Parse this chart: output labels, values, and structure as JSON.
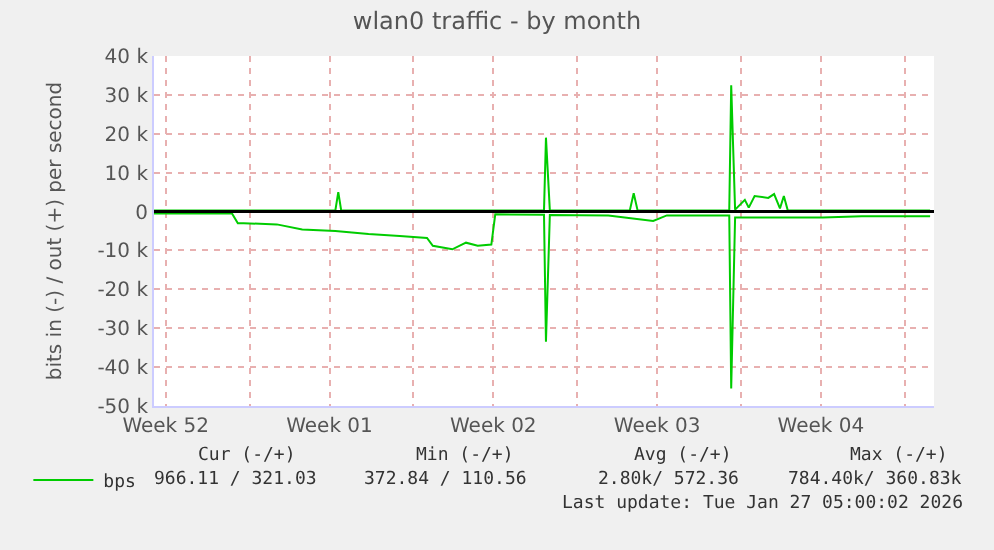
{
  "chart_data": {
    "type": "line",
    "title": "wlan0 traffic - by month",
    "ylabel": "bits in (-) / out (+) per second",
    "xlim": [
      "2025-12-24T22:00",
      "2026-01-27T06:00"
    ],
    "xticks": [
      {
        "value": "2025-12-25T10:00",
        "label": "Week 52"
      },
      {
        "value": "2025-12-29",
        "label": null
      },
      {
        "value": "2026-01-01T10:00",
        "label": "Week 01"
      },
      {
        "value": "2026-01-05",
        "label": null
      },
      {
        "value": "2026-01-08T10:00",
        "label": "Week 02"
      },
      {
        "value": "2026-01-12",
        "label": null
      },
      {
        "value": "2026-01-15T10:00",
        "label": "Week 03"
      },
      {
        "value": "2026-01-19",
        "label": null
      },
      {
        "value": "2026-01-22T10:00",
        "label": "Week 04"
      },
      {
        "value": "2026-01-26",
        "label": null
      }
    ],
    "ylim": [
      -50000,
      40000
    ],
    "yticks": [
      {
        "value": -50000,
        "label": "-50 k"
      },
      {
        "value": -40000,
        "label": "-40 k"
      },
      {
        "value": -30000,
        "label": "-30 k"
      },
      {
        "value": -20000,
        "label": "-20 k"
      },
      {
        "value": -10000,
        "label": "-10 k"
      },
      0,
      {
        "value": 10000,
        "label": "10 k"
      },
      {
        "value": 20000,
        "label": "20 k"
      },
      {
        "value": 30000,
        "label": "30 k"
      },
      {
        "value": 40000,
        "label": "40 k"
      }
    ],
    "series": [
      {
        "name": "bps",
        "color": "#00cc00",
        "x": [
          "2025-12-24T22:00",
          "2026-01-01T16:00",
          "2026-01-01T19:00",
          "2026-01-01T22:00",
          "2026-01-10T14:00",
          "2026-01-10T16:00",
          "2026-01-10T20:00",
          "2026-01-14T06:00",
          "2026-01-14T10:00",
          "2026-01-14T14:00",
          "2026-01-18T12:00",
          "2026-01-18T14:00",
          "2026-01-18T18:00",
          "2026-01-19T04:00",
          "2026-01-19T08:00",
          "2026-01-19T14:00",
          "2026-01-20T04:00",
          "2026-01-20T10:00",
          "2026-01-20T16:00",
          "2026-01-20T20:00",
          "2026-01-21T00:00",
          "2026-01-27T02:00"
        ],
        "values": [
          300,
          300,
          5000,
          300,
          300,
          19000,
          300,
          300,
          4700,
          300,
          300,
          32500,
          500,
          3000,
          1000,
          4000,
          3500,
          4500,
          800,
          4000,
          300,
          300
        ]
      },
      {
        "color": "#00cc00",
        "x": [
          "2025-12-24T22:00",
          "2025-12-28T06:00",
          "2025-12-28T12:00",
          "2025-12-28T18:00",
          "2025-12-30T04:00",
          "2025-12-31T06:00",
          "2026-01-01T16:00",
          "2026-01-03T02:00",
          "2026-01-04T10:00",
          "2026-01-05T14:00",
          "2026-01-05T20:00",
          "2026-01-06T16:00",
          "2026-01-07T06:00",
          "2026-01-07T18:00",
          "2026-01-08T08:00",
          "2026-01-08T12:00",
          "2026-01-10T14:00",
          "2026-01-10T16:00",
          "2026-01-10T20:00",
          "2026-01-13T08:00",
          "2026-01-15T06:00",
          "2026-01-15T20:00",
          "2026-01-18T12:00",
          "2026-01-18T14:00",
          "2026-01-18T18:00",
          "2026-01-22T12:00",
          "2026-01-24T04:00",
          "2026-01-27T02:00"
        ],
        "values": [
          -500,
          -500,
          -3000,
          -3000,
          -3300,
          -4600,
          -5000,
          -5800,
          -6300,
          -6800,
          -8800,
          -9700,
          -8000,
          -8800,
          -8500,
          -700,
          -800,
          -33500,
          -900,
          -1000,
          -2400,
          -1000,
          -1000,
          -45500,
          -1500,
          -1500,
          -1200,
          -1200
        ]
      }
    ],
    "ref_lines": [
      {
        "axis": "y",
        "value": 0,
        "color": "#000000"
      }
    ],
    "grid": true,
    "legend": "bottom left",
    "marker": "none",
    "line_style": "solid",
    "annotations": [
      "Cur (-/+)",
      "Min (-/+)",
      "Avg (-/+)",
      "Max (-/+)",
      "966.11 / 321.03",
      "372.84 / 110.56",
      "2.80k/ 572.36",
      "784.40k/ 360.83k",
      "Last update: Tue Jan 27 05:00:02 2026"
    ]
  }
}
